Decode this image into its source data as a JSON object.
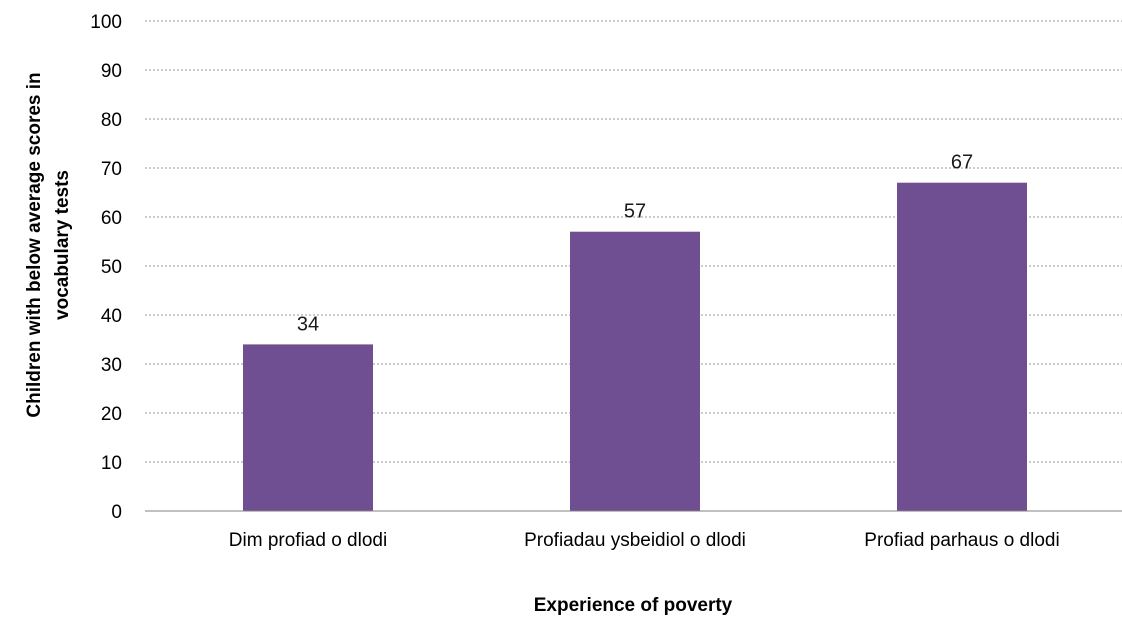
{
  "chart_data": {
    "type": "bar",
    "categories": [
      "Dim profiad o dlodi",
      "Profiadau ysbeidiol o dlodi",
      "Profiad parhaus o dlodi"
    ],
    "values": [
      34,
      57,
      67
    ],
    "data_labels": [
      "34",
      "57",
      "67"
    ],
    "title": "",
    "xlabel": "Experience of poverty",
    "ylabel_lines": [
      "Children with below average scores in",
      "vocabulary tests"
    ],
    "ylim": [
      0,
      100
    ],
    "yticks": [
      0,
      10,
      20,
      30,
      40,
      50,
      60,
      70,
      80,
      90,
      100
    ],
    "grid": true,
    "legend": "none",
    "bar_color": "#6f4e91"
  }
}
